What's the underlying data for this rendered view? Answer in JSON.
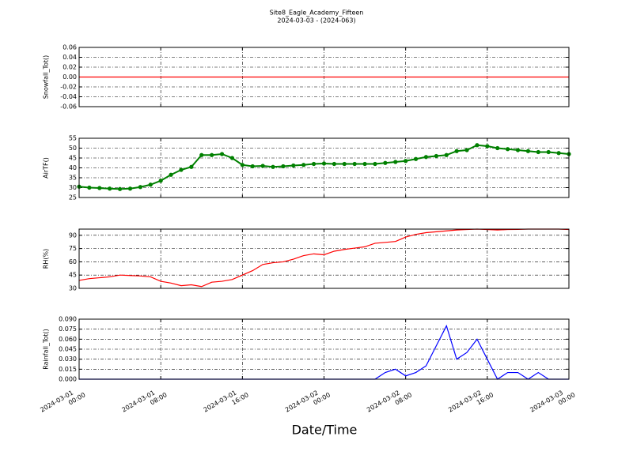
{
  "title": "Site8_Eagle_Academy_Fifteen",
  "subtitle": "2024-03-03 - (2024-063)",
  "xlabel": "Date/Time",
  "chart_data": [
    {
      "type": "line",
      "ylabel": "Snowfall_Tot()",
      "color": "#ff0000",
      "grid": true,
      "marker": false,
      "x": [
        "2024-03-01 00:00",
        "2024-03-03 00:00"
      ],
      "values": [
        0,
        0
      ],
      "xlim": [
        "2024-03-01 00:00",
        "2024-03-03 00:00"
      ],
      "ylim": [
        -0.06,
        0.06
      ],
      "yticks": [
        -0.06,
        -0.04,
        -0.02,
        {
          "value": 0,
          "label": "0.00"
        },
        0.02,
        0.04,
        0.06
      ]
    },
    {
      "type": "line",
      "ylabel": "AirTF()",
      "color": "#008000",
      "grid": true,
      "marker": true,
      "x": [
        "2024-03-01 00:00",
        "2024-03-01 01:00",
        "2024-03-01 02:00",
        "2024-03-01 03:00",
        "2024-03-01 04:00",
        "2024-03-01 05:00",
        "2024-03-01 06:00",
        "2024-03-01 07:00",
        "2024-03-01 08:00",
        "2024-03-01 09:00",
        "2024-03-01 10:00",
        "2024-03-01 11:00",
        "2024-03-01 12:00",
        "2024-03-01 13:00",
        "2024-03-01 14:00",
        "2024-03-01 15:00",
        "2024-03-01 16:00",
        "2024-03-01 17:00",
        "2024-03-01 18:00",
        "2024-03-01 19:00",
        "2024-03-01 20:00",
        "2024-03-01 21:00",
        "2024-03-01 22:00",
        "2024-03-01 23:00",
        "2024-03-02 00:00",
        "2024-03-02 01:00",
        "2024-03-02 02:00",
        "2024-03-02 03:00",
        "2024-03-02 04:00",
        "2024-03-02 05:00",
        "2024-03-02 06:00",
        "2024-03-02 07:00",
        "2024-03-02 08:00",
        "2024-03-02 09:00",
        "2024-03-02 10:00",
        "2024-03-02 11:00",
        "2024-03-02 12:00",
        "2024-03-02 13:00",
        "2024-03-02 14:00",
        "2024-03-02 15:00",
        "2024-03-02 16:00",
        "2024-03-02 17:00",
        "2024-03-02 18:00",
        "2024-03-02 19:00",
        "2024-03-02 20:00",
        "2024-03-02 21:00",
        "2024-03-02 22:00",
        "2024-03-02 23:00",
        "2024-03-03 00:00"
      ],
      "values": [
        30.5,
        30,
        29.8,
        29.5,
        29.3,
        29.5,
        30.3,
        31.5,
        33.5,
        36.5,
        39,
        40.5,
        46.5,
        46.5,
        47,
        45,
        41.5,
        40.8,
        41,
        40.5,
        40.8,
        41.2,
        41.5,
        42,
        42.2,
        42,
        42,
        42,
        42,
        42,
        42.5,
        43,
        43.5,
        44.5,
        45.5,
        46,
        46.5,
        48.5,
        49,
        51.5,
        51,
        50,
        49.5,
        49,
        48.5,
        48,
        48,
        47.5,
        47
      ],
      "xlim": [
        "2024-03-01 00:00",
        "2024-03-03 00:00"
      ],
      "ylim": [
        25,
        55
      ],
      "yticks": [
        25,
        30,
        35,
        40,
        45,
        50,
        55
      ]
    },
    {
      "type": "line",
      "ylabel": "RH(%)",
      "color": "#ff0000",
      "grid": true,
      "marker": false,
      "x": [
        "2024-03-01 00:00",
        "2024-03-01 01:00",
        "2024-03-01 02:00",
        "2024-03-01 03:00",
        "2024-03-01 04:00",
        "2024-03-01 05:00",
        "2024-03-01 06:00",
        "2024-03-01 07:00",
        "2024-03-01 08:00",
        "2024-03-01 09:00",
        "2024-03-01 10:00",
        "2024-03-01 11:00",
        "2024-03-01 12:00",
        "2024-03-01 13:00",
        "2024-03-01 14:00",
        "2024-03-01 15:00",
        "2024-03-01 16:00",
        "2024-03-01 17:00",
        "2024-03-01 18:00",
        "2024-03-01 19:00",
        "2024-03-01 20:00",
        "2024-03-01 21:00",
        "2024-03-01 22:00",
        "2024-03-01 23:00",
        "2024-03-02 00:00",
        "2024-03-02 01:00",
        "2024-03-02 02:00",
        "2024-03-02 03:00",
        "2024-03-02 04:00",
        "2024-03-02 05:00",
        "2024-03-02 06:00",
        "2024-03-02 07:00",
        "2024-03-02 08:00",
        "2024-03-02 09:00",
        "2024-03-02 10:00",
        "2024-03-02 11:00",
        "2024-03-02 12:00",
        "2024-03-02 13:00",
        "2024-03-02 14:00",
        "2024-03-02 15:00",
        "2024-03-02 16:00",
        "2024-03-02 17:00",
        "2024-03-02 18:00",
        "2024-03-02 19:00",
        "2024-03-02 20:00",
        "2024-03-02 21:00",
        "2024-03-02 22:00",
        "2024-03-02 23:00",
        "2024-03-03 00:00"
      ],
      "values": [
        39,
        41,
        42,
        43,
        45,
        44.5,
        44,
        43,
        38,
        36,
        33,
        34,
        32,
        37,
        38,
        40,
        45,
        50,
        57,
        59,
        60,
        63,
        67,
        69,
        68,
        72,
        74,
        75.5,
        77,
        81,
        82,
        83,
        88,
        91,
        93,
        94,
        95,
        96,
        96.5,
        97,
        96.5,
        96,
        96.5,
        96.7,
        97,
        97,
        97,
        97,
        96.5
      ],
      "xlim": [
        "2024-03-01 00:00",
        "2024-03-03 00:00"
      ],
      "ylim": [
        30,
        97
      ],
      "yticks": [
        30,
        45,
        60,
        75,
        90
      ]
    },
    {
      "type": "line",
      "ylabel": "Rainfall_Tot()",
      "color": "#0000ff",
      "grid": true,
      "marker": false,
      "x": [
        "2024-03-01 00:00",
        "2024-03-01 01:00",
        "2024-03-01 02:00",
        "2024-03-01 03:00",
        "2024-03-01 04:00",
        "2024-03-01 05:00",
        "2024-03-01 06:00",
        "2024-03-01 07:00",
        "2024-03-01 08:00",
        "2024-03-01 09:00",
        "2024-03-01 10:00",
        "2024-03-01 11:00",
        "2024-03-01 12:00",
        "2024-03-01 13:00",
        "2024-03-01 14:00",
        "2024-03-01 15:00",
        "2024-03-01 16:00",
        "2024-03-01 17:00",
        "2024-03-01 18:00",
        "2024-03-01 19:00",
        "2024-03-01 20:00",
        "2024-03-01 21:00",
        "2024-03-01 22:00",
        "2024-03-01 23:00",
        "2024-03-02 00:00",
        "2024-03-02 01:00",
        "2024-03-02 02:00",
        "2024-03-02 03:00",
        "2024-03-02 04:00",
        "2024-03-02 05:00",
        "2024-03-02 06:00",
        "2024-03-02 07:00",
        "2024-03-02 08:00",
        "2024-03-02 09:00",
        "2024-03-02 10:00",
        "2024-03-02 11:00",
        "2024-03-02 12:00",
        "2024-03-02 13:00",
        "2024-03-02 14:00",
        "2024-03-02 15:00",
        "2024-03-02 16:00",
        "2024-03-02 17:00",
        "2024-03-02 18:00",
        "2024-03-02 19:00",
        "2024-03-02 20:00",
        "2024-03-02 21:00",
        "2024-03-02 22:00",
        "2024-03-02 23:00",
        "2024-03-03 00:00"
      ],
      "values": [
        0,
        0,
        0,
        0,
        0,
        0,
        0,
        0,
        0,
        0,
        0,
        0,
        0,
        0,
        0,
        0,
        0,
        0,
        0,
        0,
        0,
        0,
        0,
        0,
        0,
        0,
        0,
        0,
        0,
        0,
        0.01,
        0.015,
        0.005,
        0.01,
        0.02,
        0.05,
        0.08,
        0.03,
        0.04,
        0.06,
        0.03,
        0,
        0.01,
        0.01,
        0,
        0.01,
        0,
        0,
        0
      ],
      "xlim": [
        "2024-03-01 00:00",
        "2024-03-03 00:00"
      ],
      "ylim": [
        0,
        0.09
      ],
      "yticks": [
        {
          "value": 0,
          "label": "0.000"
        },
        0.015,
        {
          "value": 0.03,
          "label": "0.030"
        },
        0.045,
        {
          "value": 0.06,
          "label": "0.060"
        },
        0.075,
        {
          "value": 0.09,
          "label": "0.090"
        }
      ],
      "xticks": [
        "2024-03-01 00:00",
        "2024-03-01 08:00",
        "2024-03-01 16:00",
        "2024-03-02 00:00",
        "2024-03-02 08:00",
        "2024-03-02 16:00",
        "2024-03-03 00:00"
      ]
    }
  ]
}
